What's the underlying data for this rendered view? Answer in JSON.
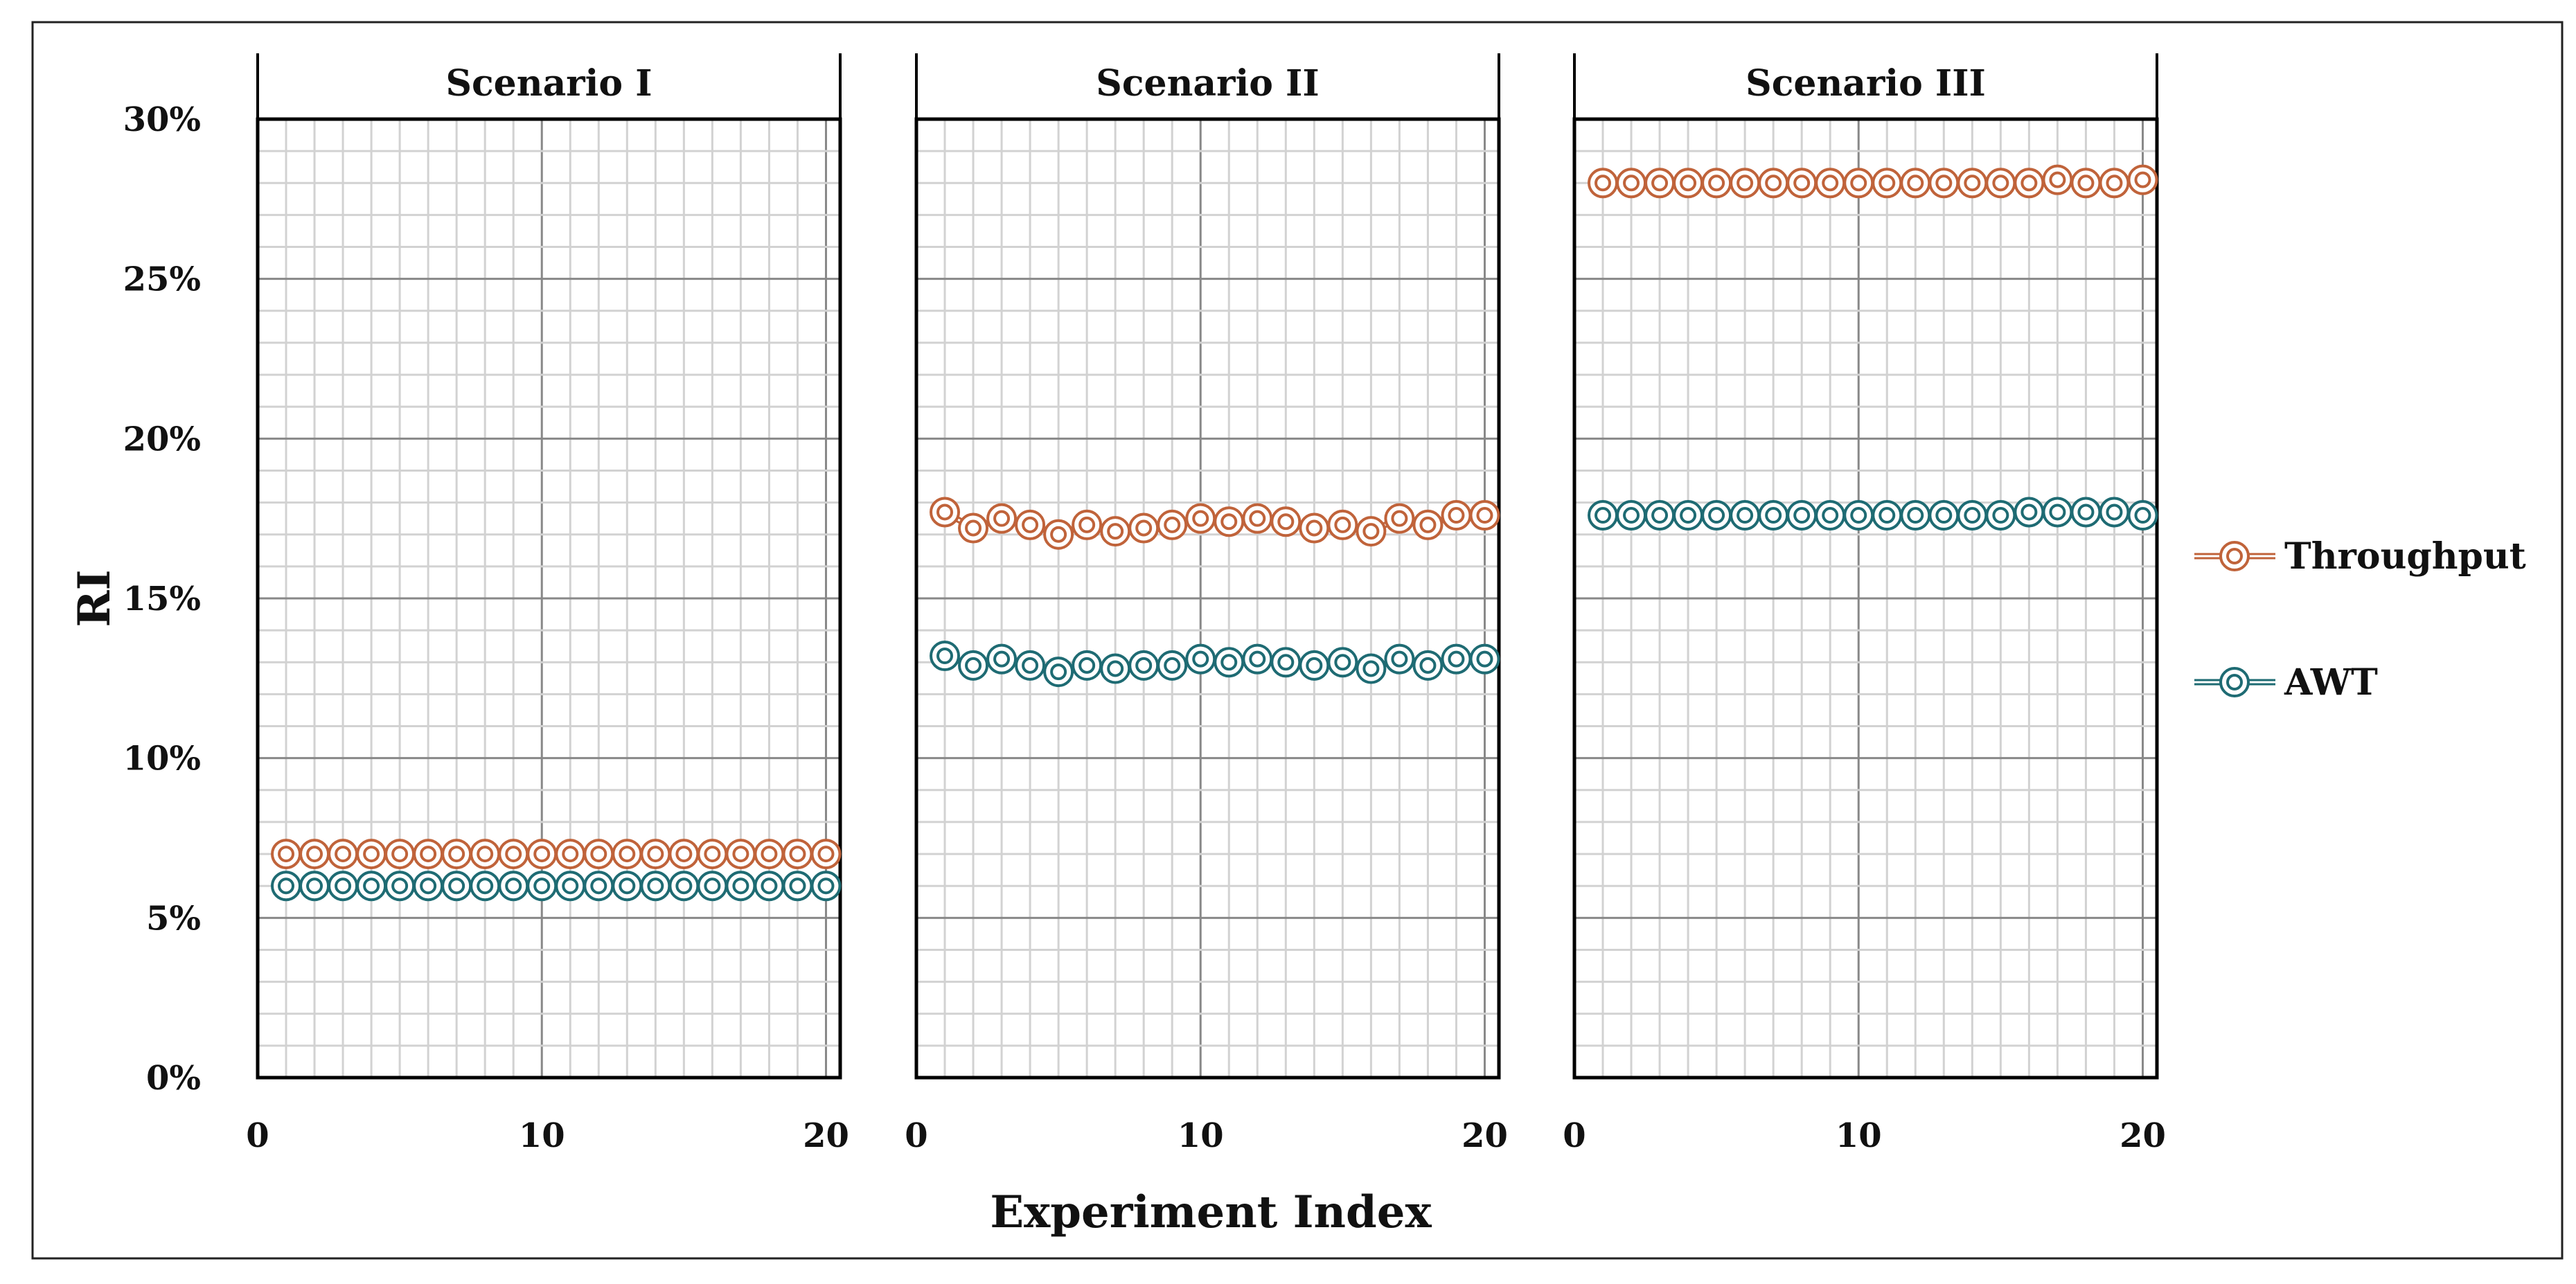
{
  "chart_data": {
    "type": "line",
    "ylabel": "RI",
    "xlabel": "Experiment Index",
    "ylim": [
      0,
      30
    ],
    "yticks": [
      "0%",
      "5%",
      "10%",
      "15%",
      "20%",
      "25%",
      "30%"
    ],
    "xlim": [
      0,
      20.5
    ],
    "xticks": [
      "0",
      "10",
      "20"
    ],
    "legend_position": "right",
    "legend": [
      {
        "name": "Throughput",
        "color": "#c0633a"
      },
      {
        "name": "AWT",
        "color": "#1e6b73"
      }
    ],
    "panels": [
      {
        "title": "Scenario I",
        "x": [
          1,
          2,
          3,
          4,
          5,
          6,
          7,
          8,
          9,
          10,
          11,
          12,
          13,
          14,
          15,
          16,
          17,
          18,
          19,
          20
        ],
        "series": [
          {
            "name": "Throughput",
            "values": [
              7.0,
              7.0,
              7.0,
              7.0,
              7.0,
              7.0,
              7.0,
              7.0,
              7.0,
              7.0,
              7.0,
              7.0,
              7.0,
              7.0,
              7.0,
              7.0,
              7.0,
              7.0,
              7.0,
              7.0
            ]
          },
          {
            "name": "AWT",
            "values": [
              6.0,
              6.0,
              6.0,
              6.0,
              6.0,
              6.0,
              6.0,
              6.0,
              6.0,
              6.0,
              6.0,
              6.0,
              6.0,
              6.0,
              6.0,
              6.0,
              6.0,
              6.0,
              6.0,
              6.0
            ]
          }
        ]
      },
      {
        "title": "Scenario II",
        "x": [
          1,
          2,
          3,
          4,
          5,
          6,
          7,
          8,
          9,
          10,
          11,
          12,
          13,
          14,
          15,
          16,
          17,
          18,
          19,
          20
        ],
        "series": [
          {
            "name": "Throughput",
            "values": [
              17.7,
              17.2,
              17.5,
              17.3,
              17.0,
              17.3,
              17.1,
              17.2,
              17.3,
              17.5,
              17.4,
              17.5,
              17.4,
              17.2,
              17.3,
              17.1,
              17.5,
              17.3,
              17.6,
              17.6
            ]
          },
          {
            "name": "AWT",
            "values": [
              13.2,
              12.9,
              13.1,
              12.9,
              12.7,
              12.9,
              12.8,
              12.9,
              12.9,
              13.1,
              13.0,
              13.1,
              13.0,
              12.9,
              13.0,
              12.8,
              13.1,
              12.9,
              13.1,
              13.1
            ]
          }
        ]
      },
      {
        "title": "Scenario III",
        "x": [
          1,
          2,
          3,
          4,
          5,
          6,
          7,
          8,
          9,
          10,
          11,
          12,
          13,
          14,
          15,
          16,
          17,
          18,
          19,
          20
        ],
        "series": [
          {
            "name": "Throughput",
            "values": [
              28.0,
              28.0,
              28.0,
              28.0,
              28.0,
              28.0,
              28.0,
              28.0,
              28.0,
              28.0,
              28.0,
              28.0,
              28.0,
              28.0,
              28.0,
              28.0,
              28.1,
              28.0,
              28.0,
              28.1
            ]
          },
          {
            "name": "AWT",
            "values": [
              17.6,
              17.6,
              17.6,
              17.6,
              17.6,
              17.6,
              17.6,
              17.6,
              17.6,
              17.6,
              17.6,
              17.6,
              17.6,
              17.6,
              17.6,
              17.7,
              17.7,
              17.7,
              17.7,
              17.6
            ]
          }
        ]
      }
    ]
  }
}
